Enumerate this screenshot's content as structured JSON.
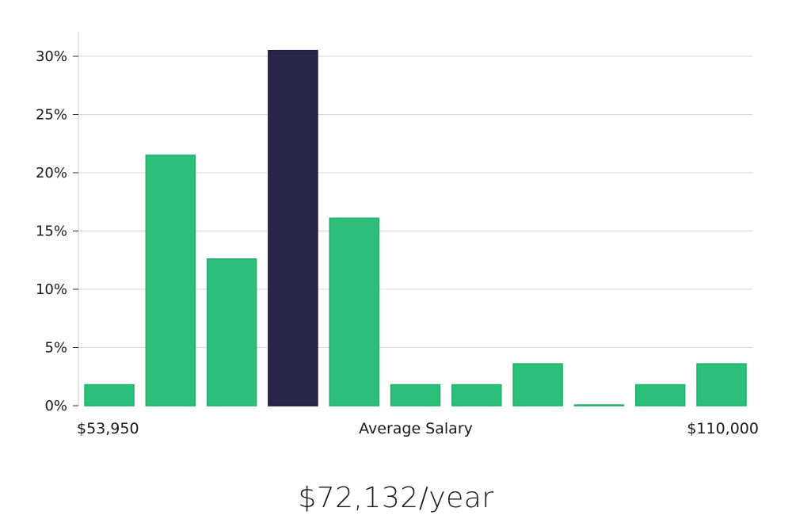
{
  "chart_data": {
    "type": "bar",
    "title": "",
    "xlabel": "Average Salary",
    "ylabel": "",
    "x_range_labels": {
      "min": "$53,950",
      "max": "$110,000"
    },
    "ylim": [
      0,
      32
    ],
    "yticks": [
      0,
      5,
      10,
      15,
      20,
      25,
      30
    ],
    "ytick_labels": [
      "0%",
      "5%",
      "10%",
      "15%",
      "20%",
      "25%",
      "30%"
    ],
    "grid": true,
    "values": [
      1.8,
      21.5,
      12.6,
      30.5,
      16.1,
      1.8,
      1.8,
      3.6,
      0.05,
      1.8,
      3.6
    ],
    "highlight_index": 3,
    "colors": {
      "bar": "#2bbf79",
      "bar_border": "#22b06c",
      "highlight": "#2a2647",
      "highlight_border": "#1c1840",
      "grid": "#d9d9d9",
      "axis": "#cccccc"
    }
  },
  "salary_text": "$72,132/year"
}
